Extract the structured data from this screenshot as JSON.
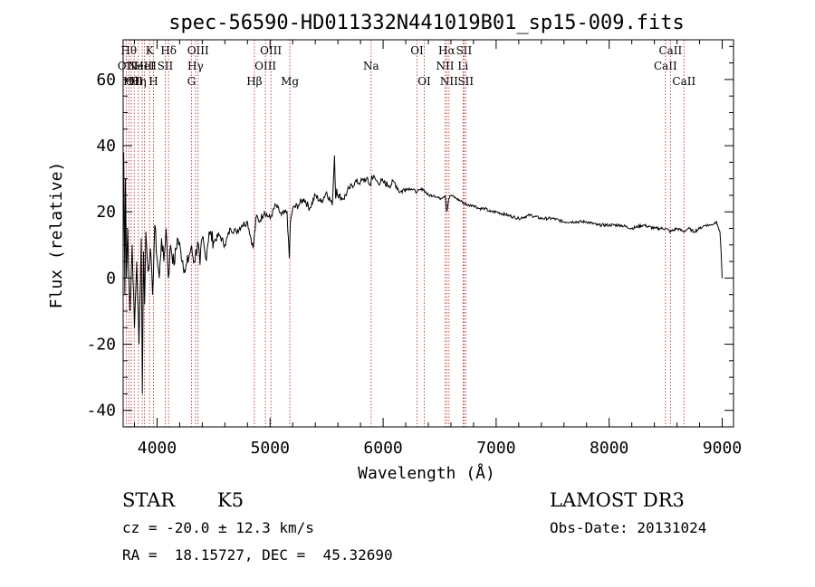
{
  "chart_data": {
    "type": "line",
    "title": "spec-56590-HD011332N441019B01_sp15-009.fits",
    "xlabel": "Wavelength (Å)",
    "ylabel": "Flux (relative)",
    "xlim": [
      3700,
      9100
    ],
    "ylim": [
      -45,
      72
    ],
    "xticks": [
      "4000",
      "5000",
      "6000",
      "7000",
      "8000",
      "9000"
    ],
    "xtick_values": [
      4000,
      5000,
      6000,
      7000,
      8000,
      9000
    ],
    "yticks": [
      "-40",
      "-20",
      "0",
      "20",
      "40",
      "60"
    ],
    "ytick_values": [
      -40,
      -20,
      0,
      20,
      40,
      60
    ],
    "series": [
      {
        "name": "flux",
        "color": "#000000",
        "x": [
          3700,
          3705,
          3710,
          3715,
          3720,
          3730,
          3740,
          3760,
          3780,
          3800,
          3820,
          3840,
          3860,
          3870,
          3880,
          3890,
          3900,
          3920,
          3940,
          3960,
          3980,
          4000,
          4020,
          4040,
          4060,
          4080,
          4100,
          4120,
          4150,
          4180,
          4210,
          4250,
          4300,
          4330,
          4360,
          4380,
          4400,
          4430,
          4460,
          4500,
          4550,
          4600,
          4650,
          4700,
          4750,
          4800,
          4850,
          4880,
          4900,
          4950,
          5000,
          5050,
          5100,
          5150,
          5170,
          5180,
          5200,
          5250,
          5300,
          5350,
          5400,
          5450,
          5500,
          5550,
          5570,
          5580,
          5590,
          5600,
          5650,
          5700,
          5750,
          5800,
          5850,
          5890,
          5900,
          5950,
          6000,
          6050,
          6100,
          6150,
          6200,
          6250,
          6300,
          6350,
          6400,
          6450,
          6500,
          6550,
          6563,
          6580,
          6600,
          6650,
          6700,
          6750,
          6800,
          6850,
          6900,
          6950,
          7000,
          7100,
          7200,
          7300,
          7400,
          7500,
          7600,
          7700,
          7800,
          7900,
          8000,
          8100,
          8200,
          8300,
          8400,
          8500,
          8542,
          8600,
          8662,
          8700,
          8750,
          8800,
          8850,
          8900,
          8950,
          8960,
          8980,
          8990,
          9000
        ],
        "y": [
          6,
          38,
          20,
          -5,
          30,
          0,
          15,
          -10,
          10,
          -15,
          5,
          -20,
          12,
          -35,
          8,
          -8,
          14,
          2,
          9,
          -5,
          16,
          6,
          0,
          12,
          5,
          15,
          0,
          10,
          4,
          12,
          8,
          2,
          9,
          5,
          11,
          4,
          12,
          6,
          14,
          11,
          13,
          10,
          15,
          14,
          16,
          17,
          9,
          19,
          17,
          20,
          18,
          22,
          19,
          20,
          6,
          17,
          21,
          22,
          24,
          21,
          25,
          23,
          26,
          22,
          37,
          24,
          27,
          25,
          24,
          27,
          29,
          29,
          30,
          28,
          31,
          29,
          29,
          28,
          29,
          26,
          27,
          27,
          26,
          27,
          25,
          25,
          24,
          25,
          20,
          24,
          25,
          24,
          23,
          22,
          22,
          21,
          21,
          20,
          20,
          19,
          18,
          19,
          18,
          18,
          17,
          17,
          17,
          16,
          16,
          16,
          15,
          16,
          15,
          15,
          14,
          15,
          14,
          15,
          14,
          15,
          16,
          16,
          17,
          16,
          14,
          8,
          0
        ]
      }
    ],
    "line_markers": [
      {
        "wl": 3727,
        "labels": [
          "OII"
        ],
        "row": 1
      },
      {
        "wl": 3750,
        "labels": [
          "Hθ"
        ],
        "row": 0
      },
      {
        "wl": 3771,
        "labels": [
          "Hθ"
        ],
        "row": 2
      },
      {
        "wl": 3798,
        "labels": [
          "OII"
        ],
        "row": 2
      },
      {
        "wl": 3835,
        "labels": [
          "Hη"
        ],
        "row": 2
      },
      {
        "wl": 3869,
        "labels": [
          "NeIII"
        ],
        "row": 1
      },
      {
        "wl": 3889,
        "labels": [
          "HeI"
        ],
        "row": 1
      },
      {
        "wl": 3934,
        "labels": [
          "K"
        ],
        "row": 0
      },
      {
        "wl": 3968,
        "labels": [
          "H"
        ],
        "row": 2
      },
      {
        "wl": 4072,
        "labels": [
          "SII"
        ],
        "row": 1
      },
      {
        "wl": 4102,
        "labels": [
          "Hδ"
        ],
        "row": 0
      },
      {
        "wl": 4304,
        "labels": [
          "G"
        ],
        "row": 2
      },
      {
        "wl": 4340,
        "labels": [
          "Hγ"
        ],
        "row": 1
      },
      {
        "wl": 4363,
        "labels": [
          "OIII"
        ],
        "row": 0
      },
      {
        "wl": 4861,
        "labels": [
          "Hβ"
        ],
        "row": 2
      },
      {
        "wl": 4959,
        "labels": [
          "OIII"
        ],
        "row": 1
      },
      {
        "wl": 5007,
        "labels": [
          "OIII"
        ],
        "row": 0
      },
      {
        "wl": 5175,
        "labels": [
          "Mg"
        ],
        "row": 2
      },
      {
        "wl": 5894,
        "labels": [
          "Na"
        ],
        "row": 1
      },
      {
        "wl": 6300,
        "labels": [
          "OI"
        ],
        "row": 0
      },
      {
        "wl": 6364,
        "labels": [
          "OI"
        ],
        "row": 2
      },
      {
        "wl": 6548,
        "labels": [
          "NII"
        ],
        "row": 1
      },
      {
        "wl": 6563,
        "labels": [
          "Hα"
        ],
        "row": 0
      },
      {
        "wl": 6583,
        "labels": [
          "NII"
        ],
        "row": 2
      },
      {
        "wl": 6707,
        "labels": [
          "Li"
        ],
        "row": 1
      },
      {
        "wl": 6716,
        "labels": [
          "SII"
        ],
        "row": 0
      },
      {
        "wl": 6731,
        "labels": [
          "SII"
        ],
        "row": 2
      },
      {
        "wl": 8498,
        "labels": [
          "CaII"
        ],
        "row": 1
      },
      {
        "wl": 8542,
        "labels": [
          "CaII"
        ],
        "row": 0
      },
      {
        "wl": 8662,
        "labels": [
          "CaII"
        ],
        "row": 2
      }
    ]
  },
  "info": {
    "object_type": "STAR",
    "spectral_class": "K5",
    "survey": "LAMOST DR3",
    "velocity": "cz = -20.0 ± 12.3 km/s",
    "obs_date": "Obs-Date: 20131024",
    "coords": "RA =  18.15727, DEC =  45.32690"
  },
  "colors": {
    "line": "#000000",
    "marker": "#b22222",
    "axis": "#000000"
  }
}
